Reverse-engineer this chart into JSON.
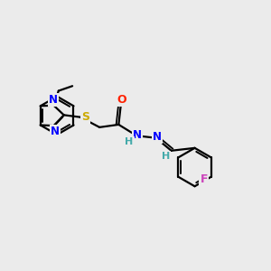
{
  "background_color": "#ebebeb",
  "bond_color": "#000000",
  "atom_colors": {
    "N": "#0000ff",
    "S": "#ccaa00",
    "O": "#ff2200",
    "F": "#cc44bb",
    "H": "#44aaaa",
    "C": "#000000"
  },
  "figsize": [
    3.0,
    3.0
  ],
  "dpi": 100,
  "lw": 1.6
}
